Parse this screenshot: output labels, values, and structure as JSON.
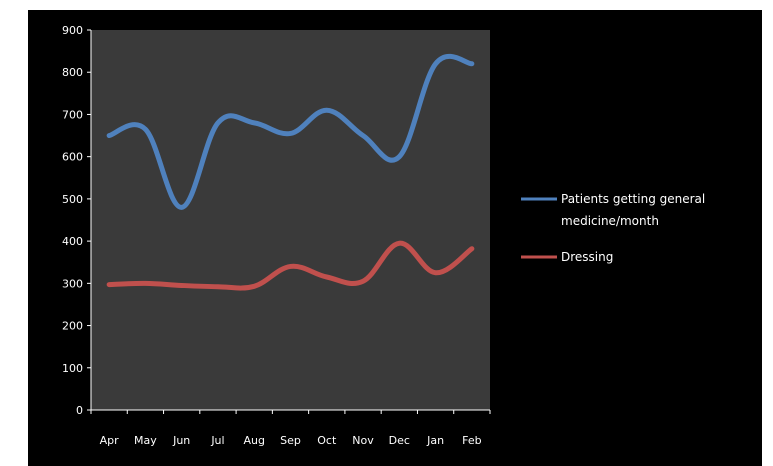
{
  "chart_data": {
    "type": "line",
    "title": "",
    "xlabel": "",
    "ylabel": "",
    "categories": [
      "Apr",
      "May",
      "Jun",
      "Jul",
      "Aug",
      "Sep",
      "Oct",
      "Nov",
      "Dec",
      "Jan",
      "Feb"
    ],
    "ylim": [
      0,
      900
    ],
    "yticks": [
      0,
      100,
      200,
      300,
      400,
      500,
      600,
      700,
      800,
      900
    ],
    "grid": false,
    "legend_position": "right",
    "plot_background": "#3a3a3a",
    "frame_background": "#000000",
    "series": [
      {
        "name": "Patients getting general medicine/month",
        "legend_lines": [
          "Patients getting general",
          "medicine/month"
        ],
        "color": "#4f81bd",
        "values": [
          650,
          665,
          480,
          680,
          680,
          655,
          710,
          650,
          600,
          820,
          820
        ]
      },
      {
        "name": "Dressing",
        "legend_lines": [
          "Dressing"
        ],
        "color": "#c0504d",
        "values": [
          297,
          300,
          295,
          292,
          293,
          340,
          315,
          305,
          395,
          325,
          382
        ]
      }
    ]
  }
}
